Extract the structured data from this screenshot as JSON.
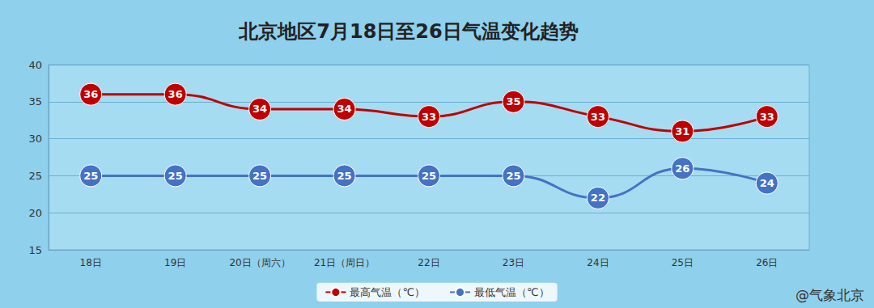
{
  "chart_data": {
    "type": "line",
    "title": "北京地区7月18日至26日气温变化趋势",
    "categories": [
      "18日",
      "19日",
      "20日（周六）",
      "21日（周日）",
      "22日",
      "23日",
      "24日",
      "25日",
      "26日"
    ],
    "series": [
      {
        "name": "最高气温（℃）",
        "color": "#c00000",
        "marker": "circle",
        "values": [
          36,
          36,
          34,
          34,
          33,
          35,
          33,
          31,
          33
        ]
      },
      {
        "name": "最低气温（℃）",
        "color": "#4472c4",
        "marker": "circle",
        "values": [
          25,
          25,
          25,
          25,
          25,
          25,
          22,
          26,
          24
        ]
      }
    ],
    "ylim": [
      15,
      40
    ],
    "yticks": [
      15,
      20,
      25,
      30,
      35,
      40
    ],
    "grid": true,
    "legend": "bottom",
    "data_labels": true,
    "annotations": [
      "@气象北京"
    ]
  }
}
